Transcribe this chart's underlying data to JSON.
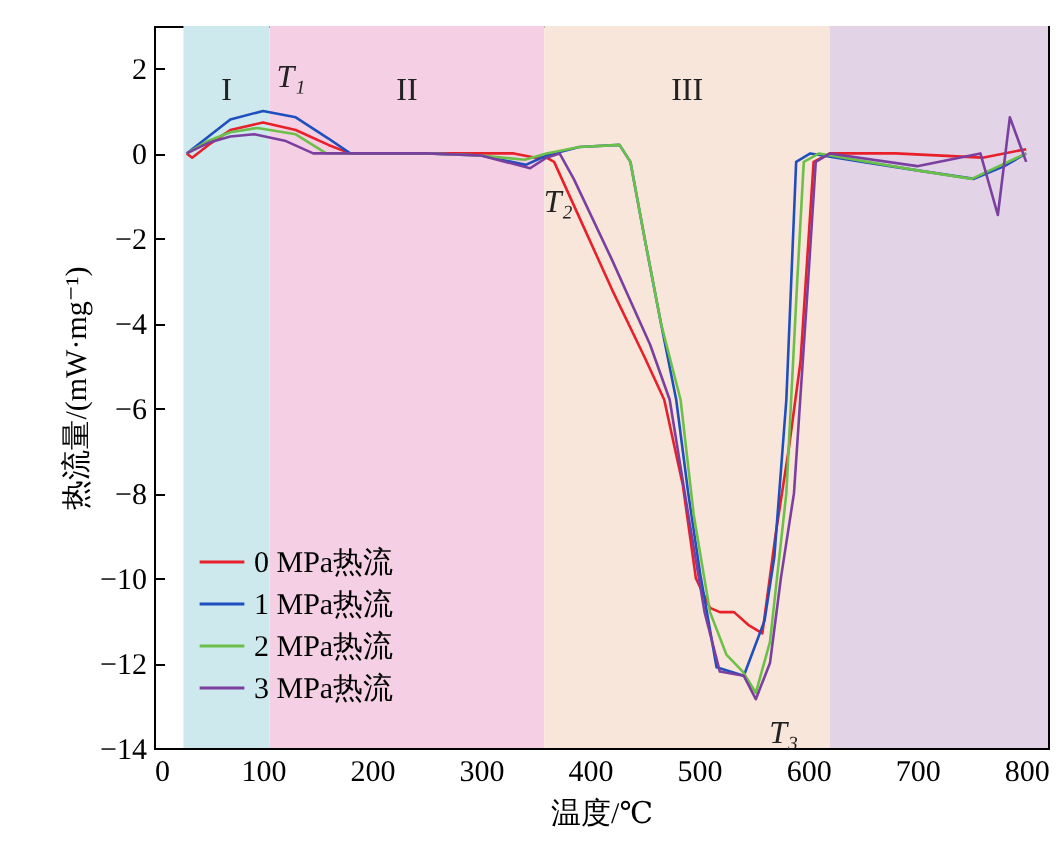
{
  "chart_data": {
    "type": "line",
    "xlabel": "温度/℃",
    "ylabel": "热流量/(mW·mg⁻¹)",
    "xlim": [
      0,
      820
    ],
    "ylim": [
      -14,
      3
    ],
    "xticks": [
      0,
      100,
      200,
      300,
      400,
      500,
      600,
      700,
      800
    ],
    "yticks": [
      -14,
      -12,
      -10,
      -8,
      -6,
      -4,
      -2,
      0,
      2
    ],
    "grid": false,
    "legend": "bottom left",
    "bands": [
      {
        "axis": "x",
        "from": 27,
        "to": 106,
        "color": "#cde9ee",
        "label": "I"
      },
      {
        "axis": "x",
        "from": 106,
        "to": 358,
        "color": "#f5d0e4",
        "label": "II"
      },
      {
        "axis": "x",
        "from": 358,
        "to": 620,
        "color": "#f9e6da",
        "label": "III"
      },
      {
        "axis": "x",
        "from": 620,
        "to": 820,
        "color": "#e3d3e6"
      }
    ],
    "annotations": [
      {
        "text": "T₁",
        "x": 100,
        "y": 1.0
      },
      {
        "text": "T₂",
        "x": 345,
        "y": -0.35
      },
      {
        "text": "T₃",
        "x": 552,
        "y": -12.85
      }
    ],
    "series": [
      {
        "name": "0 MPa热流",
        "color": "#e8202a",
        "x": [
          30,
          35,
          50,
          70,
          100,
          130,
          160,
          180,
          250,
          330,
          350,
          360,
          367,
          390,
          420,
          450,
          468,
          485,
          497,
          510,
          519,
          532,
          545,
          558,
          570,
          582,
          593,
          605,
          620,
          680,
          760,
          800
        ],
        "values": [
          0,
          -0.1,
          0.2,
          0.55,
          0.73,
          0.55,
          0.2,
          0,
          0,
          0,
          -0.1,
          -0.1,
          -0.2,
          -1.5,
          -3.2,
          -4.8,
          -5.8,
          -7.8,
          -10,
          -10.7,
          -10.8,
          -10.8,
          -11.1,
          -11.3,
          -9,
          -7,
          -4.9,
          -0.2,
          0,
          0,
          -0.1,
          0.1
        ]
      },
      {
        "name": "1 MPa热流",
        "color": "#1f4fbf",
        "x": [
          30,
          50,
          70,
          100,
          130,
          160,
          180,
          250,
          300,
          341,
          360,
          390,
          427,
          437,
          450,
          465,
          479,
          490,
          501,
          516,
          541,
          560,
          569,
          580,
          589,
          602,
          650,
          700,
          752,
          780,
          800
        ],
        "values": [
          0,
          0.4,
          0.8,
          1.0,
          0.85,
          0.35,
          0,
          0,
          -0.05,
          -0.27,
          -0.05,
          0.15,
          0.2,
          -0.2,
          -2,
          -4,
          -5.8,
          -8,
          -9.9,
          -12.1,
          -12.3,
          -11,
          -9.5,
          -5.8,
          -0.2,
          0,
          -0.2,
          -0.4,
          -0.6,
          -0.3,
          0
        ]
      },
      {
        "name": "2 MPa热流",
        "color": "#6cc04a",
        "x": [
          30,
          50,
          70,
          95,
          130,
          158,
          250,
          300,
          340,
          360,
          390,
          427,
          437,
          450,
          465,
          483,
          495,
          510,
          525,
          540,
          552,
          565,
          580,
          590,
          596,
          610,
          700,
          750,
          800
        ],
        "values": [
          0,
          0.3,
          0.5,
          0.6,
          0.45,
          0,
          0,
          -0.05,
          -0.15,
          0,
          0.15,
          0.2,
          -0.2,
          -2,
          -4,
          -5.8,
          -8.5,
          -10.8,
          -11.8,
          -12.2,
          -12.7,
          -11.5,
          -8,
          -3,
          -0.2,
          0,
          -0.4,
          -0.6,
          0
        ]
      },
      {
        "name": "3 MPa热流",
        "color": "#7b3fa0",
        "x": [
          30,
          50,
          70,
          92,
          120,
          146,
          250,
          300,
          345,
          360,
          372,
          385,
          420,
          455,
          473,
          490,
          505,
          519,
          541,
          552,
          565,
          575,
          587,
          600,
          607,
          620,
          700,
          758,
          774,
          785,
          800
        ],
        "values": [
          0,
          0.25,
          0.4,
          0.45,
          0.3,
          0,
          0,
          -0.05,
          -0.35,
          -0.1,
          0,
          -0.6,
          -2.5,
          -4.5,
          -5.8,
          -8.5,
          -10.8,
          -12.2,
          -12.3,
          -12.85,
          -12,
          -10,
          -8,
          -3,
          -0.2,
          0,
          -0.3,
          0,
          -1.45,
          0.85,
          -0.2
        ]
      }
    ]
  }
}
